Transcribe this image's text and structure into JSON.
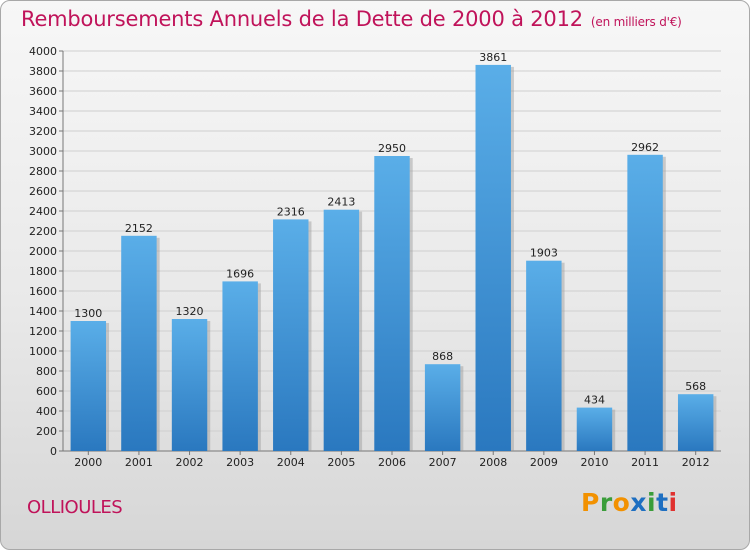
{
  "header": {
    "title": "Remboursements Annuels de la Dette de 2000 à 2012",
    "subtitle": "(en milliers d'€)"
  },
  "footer": {
    "commune": "OLLIOULES",
    "logo": "Proxiti"
  },
  "colors": {
    "title": "#c0135a",
    "bar_top": "#5aaee8",
    "bar_bottom": "#2a78bf",
    "logo_letters": [
      "#f29100",
      "#3a9d3a",
      "#f29100",
      "#1e6fc1",
      "#3a9d3a",
      "#1e6fc1",
      "#e0312f"
    ]
  },
  "chart_data": {
    "type": "bar",
    "categories": [
      "2000",
      "2001",
      "2002",
      "2003",
      "2004",
      "2005",
      "2006",
      "2007",
      "2008",
      "2009",
      "2010",
      "2011",
      "2012"
    ],
    "values": [
      1300,
      2152,
      1320,
      1696,
      2316,
      2413,
      2950,
      868,
      3861,
      1903,
      434,
      2962,
      568
    ],
    "ylim": [
      0,
      4000
    ],
    "ytick_step": 200,
    "grid": true,
    "data_labels": true
  }
}
